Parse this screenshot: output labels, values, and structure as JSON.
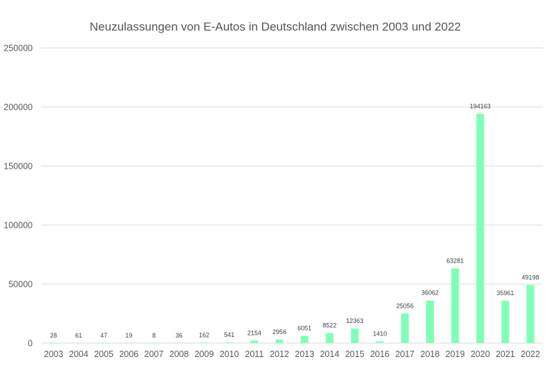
{
  "chart_data": {
    "type": "bar",
    "title": "Neuzulassungen von E-Autos in Deutschland zwischen 2003 und 2022",
    "xlabel": "",
    "ylabel": "",
    "categories": [
      "2003",
      "2004",
      "2005",
      "2006",
      "2007",
      "2008",
      "2009",
      "2010",
      "2011",
      "2012",
      "2013",
      "2014",
      "2015",
      "2016",
      "2017",
      "2018",
      "2019",
      "2020",
      "2021",
      "2022"
    ],
    "values": [
      28,
      61,
      47,
      19,
      8,
      36,
      162,
      541,
      2154,
      2956,
      6051,
      8522,
      12363,
      1410,
      25056,
      36062,
      63281,
      194163,
      35961,
      49198
    ],
    "ylim": [
      0,
      250000
    ],
    "yticks": [
      "0",
      "50000",
      "100000",
      "150000",
      "200000",
      "250000"
    ],
    "grid": true,
    "legend": "none",
    "bar_color": "#7fffb6"
  }
}
